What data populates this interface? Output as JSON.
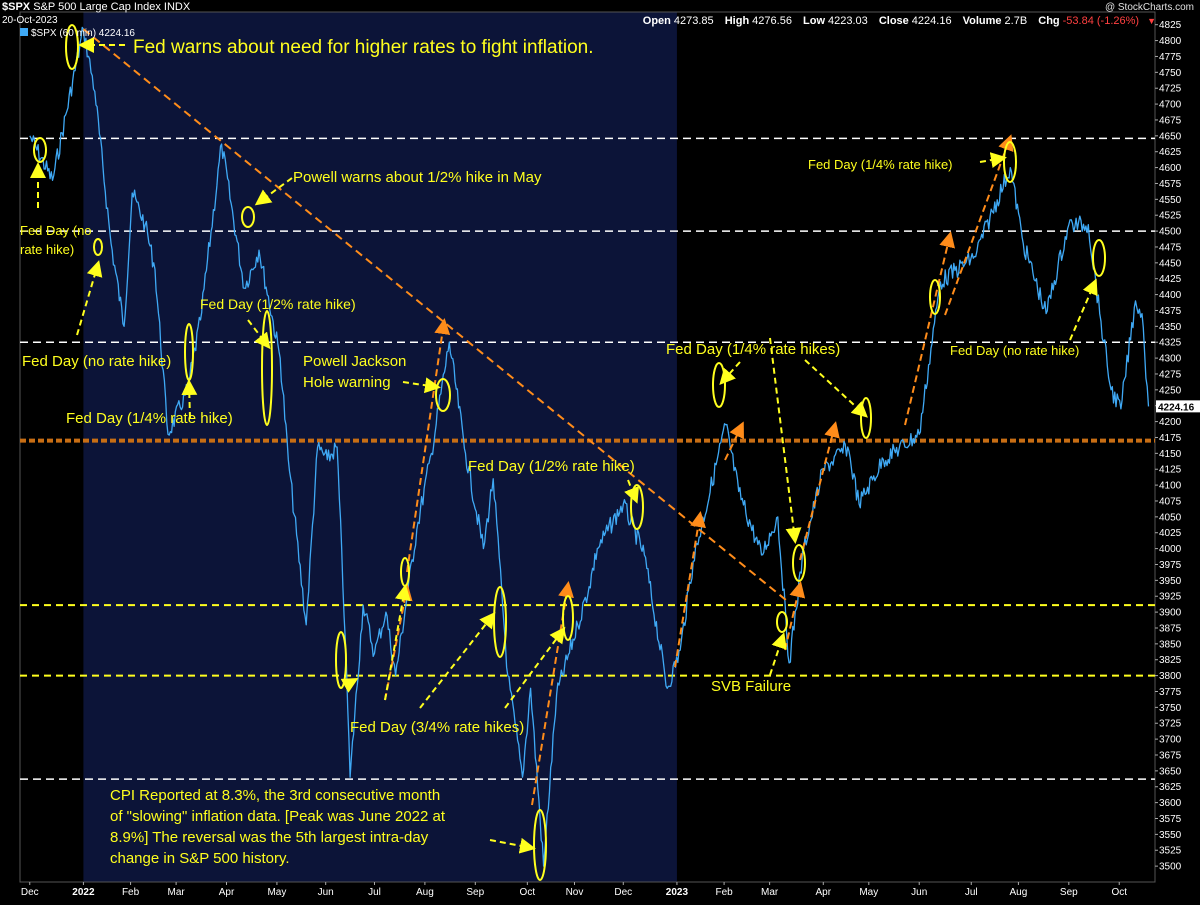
{
  "header": {
    "symbol": "$SPX",
    "name": "S&P 500 Large Cap Index",
    "exchange": "INDX",
    "date": "20-Oct-2023",
    "legend": "$SPX (60 min) 4224.16",
    "watermark": "@ StockCharts.com"
  },
  "ohlc": [
    {
      "label": "Open",
      "value": "4273.85"
    },
    {
      "label": "High",
      "value": "4276.56"
    },
    {
      "label": "Low",
      "value": "4223.03"
    },
    {
      "label": "Close",
      "value": "4224.16"
    },
    {
      "label": "Volume",
      "value": "2.7B"
    },
    {
      "label": "Chg",
      "value": "-53.84 (-1.26%)"
    }
  ],
  "colors": {
    "price": "#3fa9f5",
    "annotation": "#ffff1e",
    "arrow": "#ff8c1a",
    "whiteLine": "#ffffff",
    "yellowLine": "#ffff1e",
    "orangeLine": "#c86e14",
    "shade": "#0c1438"
  },
  "chart_data": {
    "type": "line",
    "series": [
      {
        "name": "$SPX (60 min)",
        "x": [
          "2021-12-01",
          "2021-12-15",
          "2022-01-03",
          "2022-01-10",
          "2022-01-20",
          "2022-01-28",
          "2022-02-02",
          "2022-02-10",
          "2022-02-16",
          "2022-02-24",
          "2022-03-08",
          "2022-03-16",
          "2022-03-29",
          "2022-04-12",
          "2022-04-21",
          "2022-05-04",
          "2022-05-09",
          "2022-05-20",
          "2022-05-27",
          "2022-06-02",
          "2022-06-08",
          "2022-06-13",
          "2022-06-16",
          "2022-06-24",
          "2022-07-01",
          "2022-07-08",
          "2022-07-14",
          "2022-07-27",
          "2022-08-05",
          "2022-08-16",
          "2022-08-26",
          "2022-09-06",
          "2022-09-12",
          "2022-09-21",
          "2022-09-30",
          "2022-10-05",
          "2022-10-13",
          "2022-10-21",
          "2022-11-03",
          "2022-11-10",
          "2022-11-15",
          "2022-12-01",
          "2022-12-14",
          "2022-12-28",
          "2023-01-05",
          "2023-01-13",
          "2023-02-02",
          "2023-02-10",
          "2023-02-24",
          "2023-03-06",
          "2023-03-13",
          "2023-03-22",
          "2023-04-03",
          "2023-04-18",
          "2023-04-25",
          "2023-05-10",
          "2023-06-01",
          "2023-06-14",
          "2023-07-05",
          "2023-07-27",
          "2023-08-04",
          "2023-08-18",
          "2023-09-01",
          "2023-09-13",
          "2023-09-20",
          "2023-09-27",
          "2023-10-03",
          "2023-10-12",
          "2023-10-16",
          "2023-10-20"
        ],
        "values": [
          4650,
          4580,
          4818,
          4720,
          4480,
          4350,
          4560,
          4510,
          4440,
          4180,
          4250,
          4360,
          4637,
          4410,
          4470,
          4300,
          4140,
          3880,
          4160,
          4140,
          4160,
          3860,
          3640,
          3911,
          3835,
          3900,
          3800,
          4030,
          4150,
          4325,
          4150,
          4000,
          4110,
          3800,
          3640,
          3780,
          3500,
          3770,
          3880,
          3940,
          4000,
          4070,
          3990,
          3780,
          3840,
          3980,
          4195,
          4090,
          3990,
          4050,
          3820,
          4000,
          4125,
          4160,
          4070,
          4140,
          4180,
          4420,
          4460,
          4600,
          4480,
          4370,
          4510,
          4510,
          4370,
          4250,
          4220,
          4390,
          4370,
          4224
        ]
      }
    ],
    "ylim": [
      3475,
      4845
    ],
    "yticks": [
      3500,
      3525,
      3550,
      3575,
      3600,
      3625,
      3650,
      3675,
      3700,
      3725,
      3750,
      3775,
      3800,
      3825,
      3850,
      3875,
      3900,
      3925,
      3950,
      3975,
      4000,
      4025,
      4050,
      4075,
      4100,
      4125,
      4150,
      4175,
      4200,
      4225,
      4250,
      4275,
      4300,
      4325,
      4350,
      4375,
      4400,
      4425,
      4450,
      4475,
      4500,
      4525,
      4550,
      4575,
      4600,
      4625,
      4650,
      4675,
      4700,
      4725,
      4750,
      4775,
      4800,
      4825
    ],
    "last_price_label": "4224.16",
    "xlim": [
      "2021-11-25",
      "2023-10-24"
    ],
    "xticks": [
      {
        "label": "Dec",
        "date": "2021-12-01",
        "bold": false
      },
      {
        "label": "2022",
        "date": "2022-01-03",
        "bold": true
      },
      {
        "label": "Feb",
        "date": "2022-02-01",
        "bold": false
      },
      {
        "label": "Mar",
        "date": "2022-03-01",
        "bold": false
      },
      {
        "label": "Apr",
        "date": "2022-04-01",
        "bold": false
      },
      {
        "label": "May",
        "date": "2022-05-02",
        "bold": false
      },
      {
        "label": "Jun",
        "date": "2022-06-01",
        "bold": false
      },
      {
        "label": "Jul",
        "date": "2022-07-01",
        "bold": false
      },
      {
        "label": "Aug",
        "date": "2022-08-01",
        "bold": false
      },
      {
        "label": "Sep",
        "date": "2022-09-01",
        "bold": false
      },
      {
        "label": "Oct",
        "date": "2022-10-03",
        "bold": false
      },
      {
        "label": "Nov",
        "date": "2022-11-01",
        "bold": false
      },
      {
        "label": "Dec",
        "date": "2022-12-01",
        "bold": false
      },
      {
        "label": "2023",
        "date": "2023-01-03",
        "bold": true
      },
      {
        "label": "Feb",
        "date": "2023-02-01",
        "bold": false
      },
      {
        "label": "Mar",
        "date": "2023-03-01",
        "bold": false
      },
      {
        "label": "Apr",
        "date": "2023-04-03",
        "bold": false
      },
      {
        "label": "May",
        "date": "2023-05-01",
        "bold": false
      },
      {
        "label": "Jun",
        "date": "2023-06-01",
        "bold": false
      },
      {
        "label": "Jul",
        "date": "2023-07-03",
        "bold": false
      },
      {
        "label": "Aug",
        "date": "2023-08-01",
        "bold": false
      },
      {
        "label": "Sep",
        "date": "2023-09-01",
        "bold": false
      },
      {
        "label": "Oct",
        "date": "2023-10-02",
        "bold": false
      }
    ],
    "shaded_range": [
      "2022-01-03",
      "2023-01-03"
    ],
    "horizontal_lines": [
      {
        "style": "white-dashed",
        "value": 4646
      },
      {
        "style": "white-dashed",
        "value": 4500
      },
      {
        "style": "white-dashed",
        "value": 4325
      },
      {
        "style": "orange-dashed",
        "value": 4170
      },
      {
        "style": "yellow-dashed",
        "value": 3911
      },
      {
        "style": "yellow-dashed",
        "value": 3800
      },
      {
        "style": "white-dashed",
        "value": 3637
      }
    ],
    "trendline": {
      "from": {
        "date": "2022-01-03",
        "value": 4818
      },
      "to": {
        "date": "2023-03-13",
        "value": 3915
      }
    },
    "annotations": [
      "Fed warns about need for higher rates to fight inflation.",
      "Powell warns about 1/2% hike in May",
      "Fed Day (no",
      "rate hike)",
      "Fed Day (1/2% rate hike)",
      "Fed Day (no rate hike)",
      "Powell Jackson",
      "Hole warning",
      "Fed Day (1/4% rate hike)",
      "Fed Day (1/2% rate hike)",
      "Fed Day (1/4% rate hikes)",
      "Fed Day (1/4% rate hike)",
      "Fed Day (no rate hike)",
      "SVB Failure",
      "Fed Day (3/4% rate hikes)",
      "CPI Reported at 8.3%, the 3rd consecutive month",
      "of \"slowing\" inflation data. [Peak was June 2022 at",
      "8.9%] The reversal was the 5th largest intra-day",
      "change in S&P 500 history."
    ]
  }
}
